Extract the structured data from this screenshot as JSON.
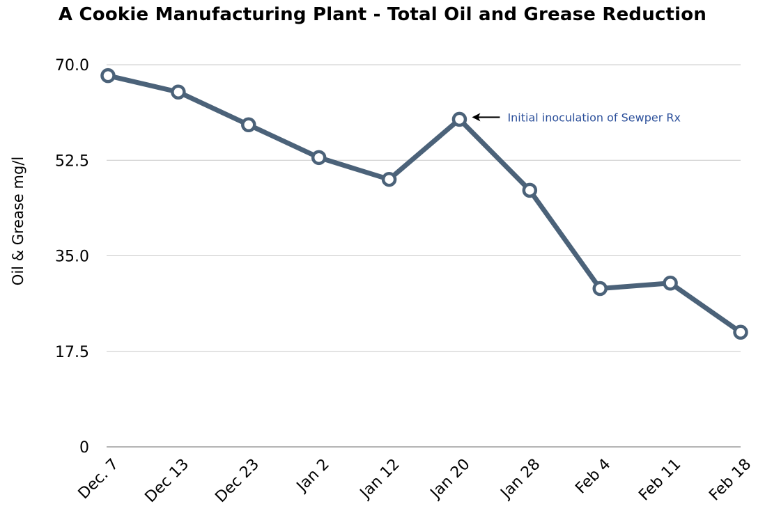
{
  "chart_data": {
    "type": "line",
    "title": "A Cookie Manufacturing Plant - Total Oil and Grease Reduction",
    "ylabel": "Oil & Grease mg/l",
    "xlabel": "",
    "categories": [
      "Dec. 7",
      "Dec 13",
      "Dec 23",
      "Jan 2",
      "Jan 12",
      "Jan 20",
      "Jan 28",
      "Feb 4",
      "Feb 11",
      "Feb 18"
    ],
    "series": [
      {
        "values": [
          68.0,
          65.0,
          59.0,
          53.0,
          49.0,
          60.0,
          47.0,
          29.0,
          30.0,
          21.0
        ]
      }
    ],
    "ylim": [
      0,
      70
    ],
    "yticks": [
      0,
      17.5,
      35.0,
      52.5,
      70.0
    ],
    "ytick_labels": [
      "0",
      "17.5",
      "35.0",
      "52.5",
      "70.0"
    ],
    "grid": "horizontal",
    "line_color": "#4b6279",
    "marker": "hollow-circle",
    "annotations": [
      {
        "text": "Initial inoculation of Sewper Rx",
        "category": "Jan 20",
        "arrow": "left",
        "color": "#2b4f9a"
      }
    ]
  }
}
